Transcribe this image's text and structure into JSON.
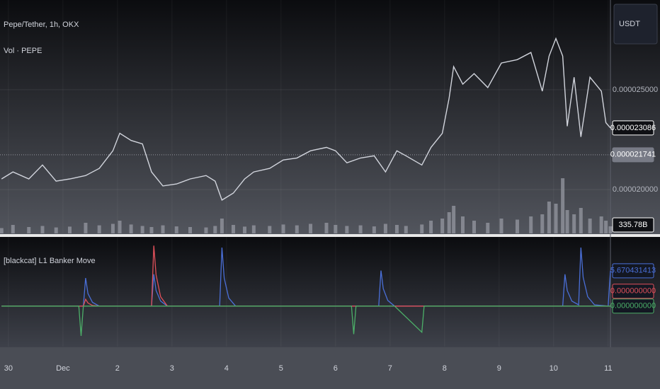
{
  "chart_data": [
    {
      "type": "line",
      "title": "Pepe/Tether, 1h, OKX",
      "subtitle": "Vol · PEPE",
      "currency": "USDT",
      "x": [
        -3,
        2,
        9,
        15,
        21,
        27,
        34,
        40,
        46,
        49,
        54,
        59,
        63,
        68,
        74,
        80,
        87,
        91,
        94,
        99,
        104,
        108,
        115,
        121,
        127,
        133,
        140,
        144,
        149,
        155,
        161,
        166,
        171,
        175,
        182,
        186,
        191,
        194,
        196,
        200,
        205,
        211,
        217,
        224,
        230,
        235,
        238,
        241,
        244,
        246,
        249,
        252,
        256,
        261,
        263,
        265
      ],
      "xlim": [
        -3.7,
        265
      ],
      "xticks": [
        {
          "value": 0,
          "label": "30"
        },
        {
          "value": 24,
          "label": "Dec"
        },
        {
          "value": 48,
          "label": "2"
        },
        {
          "value": 72,
          "label": "3"
        },
        {
          "value": 96,
          "label": "4"
        },
        {
          "value": 120,
          "label": "5"
        },
        {
          "value": 144,
          "label": "6"
        },
        {
          "value": 168,
          "label": "7"
        },
        {
          "value": 192,
          "label": "8"
        },
        {
          "value": 216,
          "label": "9"
        },
        {
          "value": 240,
          "label": "10"
        },
        {
          "value": 264,
          "label": "11"
        }
      ],
      "ylim": [
        1.78e-05,
        2.95e-05
      ],
      "yticks": [
        {
          "value": 2e-05,
          "label": "0.000020000"
        },
        {
          "value": 2.5e-05,
          "label": "0.000025000"
        }
      ],
      "y2lim": [
        0,
        11000
      ],
      "grid": true,
      "reference_line": {
        "value": 2.1741e-05,
        "label": "0.000021741"
      },
      "series": [
        {
          "color": "#d1d4dc",
          "values": [
            2.053e-05,
            2.088e-05,
            2.053e-05,
            2.123e-05,
            2.042e-05,
            2.053e-05,
            2.07e-05,
            2.106e-05,
            2.194e-05,
            2.282e-05,
            2.246e-05,
            2.229e-05,
            2.088e-05,
            2.018e-05,
            2.028e-05,
            2.053e-05,
            2.07e-05,
            2.042e-05,
            1.947e-05,
            1.982e-05,
            2.053e-05,
            2.088e-05,
            2.106e-05,
            2.148e-05,
            2.158e-05,
            2.194e-05,
            2.211e-05,
            2.194e-05,
            2.134e-05,
            2.158e-05,
            2.169e-05,
            2.088e-05,
            2.194e-05,
            2.169e-05,
            2.123e-05,
            2.211e-05,
            2.282e-05,
            2.458e-05,
            2.616e-05,
            2.528e-05,
            2.581e-05,
            2.511e-05,
            2.634e-05,
            2.651e-05,
            2.687e-05,
            2.493e-05,
            2.669e-05,
            2.757e-05,
            2.669e-05,
            2.317e-05,
            2.563e-05,
            2.264e-05,
            2.563e-05,
            2.493e-05,
            2.335e-05,
            2.3086e-05
          ],
          "value_labels": [
            null,
            null,
            null,
            null,
            null,
            null,
            null,
            null,
            null,
            null,
            null,
            null,
            null,
            null,
            null,
            null,
            null,
            null,
            null,
            null,
            null,
            null,
            null,
            null,
            null,
            null,
            null,
            null,
            null,
            null,
            null,
            null,
            null,
            null,
            null,
            null,
            null,
            null,
            null,
            null,
            null,
            null,
            null,
            null,
            null,
            null,
            null,
            null,
            null,
            null,
            null,
            null,
            null,
            null,
            null,
            "0.000023086"
          ]
        },
        {
          "type": "bar",
          "axis": "y2",
          "color": "#9598a1",
          "values": [
            250,
            400,
            300,
            350,
            280,
            320,
            500,
            380,
            450,
            600,
            420,
            350,
            300,
            380,
            330,
            300,
            280,
            350,
            700,
            400,
            320,
            380,
            350,
            420,
            380,
            450,
            500,
            400,
            350,
            380,
            330,
            450,
            400,
            350,
            420,
            600,
            700,
            1000,
            1300,
            800,
            600,
            500,
            700,
            650,
            800,
            900,
            1500,
            1400,
            2600,
            1100,
            900,
            1200,
            700,
            800,
            600,
            335.78
          ],
          "value_labels": [
            null,
            null,
            null,
            null,
            null,
            null,
            null,
            null,
            null,
            null,
            null,
            null,
            null,
            null,
            null,
            null,
            null,
            null,
            null,
            null,
            null,
            null,
            null,
            null,
            null,
            null,
            null,
            null,
            null,
            null,
            null,
            null,
            null,
            null,
            null,
            null,
            null,
            null,
            null,
            null,
            null,
            null,
            null,
            null,
            null,
            null,
            null,
            null,
            null,
            null,
            null,
            null,
            null,
            null,
            null,
            "335.78B"
          ]
        }
      ]
    },
    {
      "type": "line",
      "title": "[blackcat] L1 Banker Move",
      "x": [
        -3,
        31,
        32,
        33,
        34,
        35,
        37,
        40,
        63,
        64,
        65,
        67,
        70,
        93,
        94,
        95,
        97,
        100,
        151,
        152,
        153,
        163,
        164,
        165,
        167,
        170,
        182,
        183,
        184,
        244,
        245,
        246,
        248,
        251,
        252,
        253,
        255,
        258,
        264,
        265
      ],
      "xlim": [
        -3.7,
        265
      ],
      "ylim": [
        -6.5,
        11.1
      ],
      "series": [
        {
          "color": "#4a6fd8",
          "values": [
            0,
            0,
            0,
            0,
            4.5,
            2,
            0.6,
            0,
            0,
            5.1,
            2.5,
            0.8,
            0,
            0,
            9.4,
            4.5,
            1.3,
            0,
            0,
            0,
            0,
            0,
            5.7,
            2.8,
            0.9,
            0,
            0,
            0,
            0,
            0,
            5.1,
            2.5,
            0.8,
            0.2,
            9.4,
            4.6,
            1.5,
            0.2,
            0,
            5.670431413
          ]
        },
        {
          "color": "#e0505a",
          "values": [
            0,
            0,
            0,
            0,
            1.1,
            0.5,
            0.1,
            0,
            0,
            9.7,
            5,
            1.5,
            0,
            0,
            0,
            0,
            0,
            0,
            0,
            0,
            0,
            0,
            0,
            0,
            0,
            0,
            0,
            0,
            0,
            0,
            0,
            0,
            0,
            0,
            0,
            0,
            0,
            0,
            0,
            0
          ],
          "value_labels": [
            null,
            null,
            null,
            null,
            null,
            null,
            null,
            null,
            null,
            null,
            null,
            null,
            null,
            null,
            null,
            null,
            null,
            null,
            null,
            null,
            null,
            null,
            null,
            null,
            null,
            null,
            null,
            null,
            null,
            null,
            null,
            null,
            null,
            null,
            null,
            null,
            null,
            null,
            null,
            "0.000000000"
          ]
        },
        {
          "color": "#4caf68",
          "values": [
            0,
            0,
            -4.8,
            0,
            0,
            0,
            0,
            0,
            0,
            0,
            0,
            0,
            0,
            0,
            0,
            0,
            0,
            0,
            0,
            -4.5,
            0,
            0,
            0,
            0,
            0,
            0,
            -4.2,
            0,
            0,
            0,
            0,
            0,
            0,
            0,
            0,
            0,
            0,
            0,
            0,
            0
          ],
          "value_labels": [
            null,
            null,
            null,
            null,
            null,
            null,
            null,
            null,
            null,
            null,
            null,
            null,
            null,
            null,
            null,
            null,
            null,
            null,
            null,
            null,
            null,
            null,
            null,
            null,
            null,
            null,
            null,
            null,
            null,
            null,
            null,
            null,
            null,
            null,
            null,
            null,
            null,
            null,
            null,
            "0.000000000"
          ]
        }
      ]
    }
  ]
}
